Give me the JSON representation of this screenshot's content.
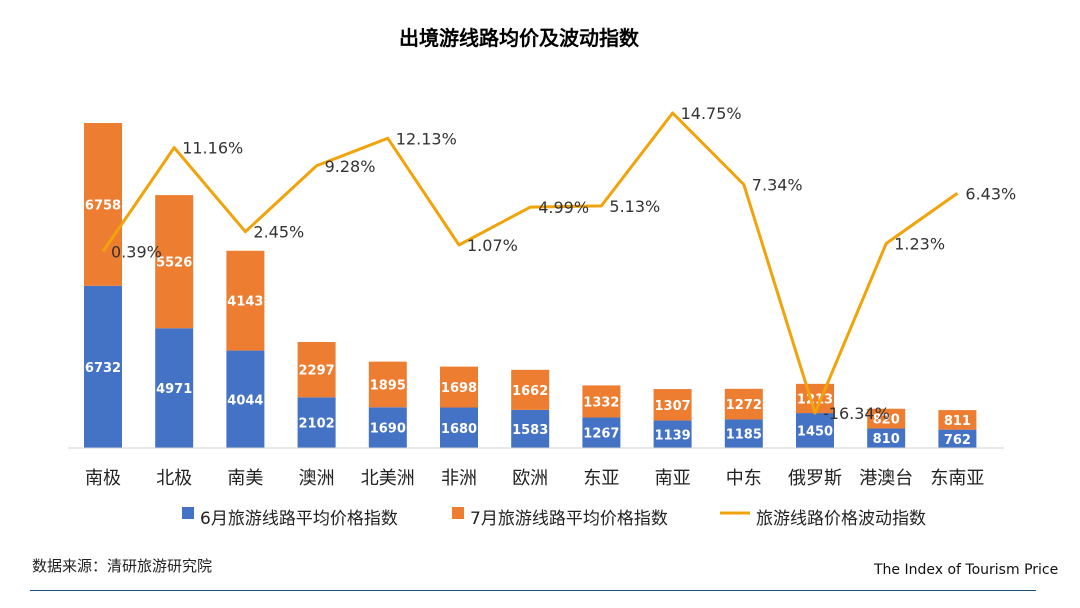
{
  "chart_data": {
    "type": "bar",
    "title": "出境游线路均价及波动指数",
    "categories": [
      "南极",
      "北极",
      "南美",
      "澳洲",
      "北美洲",
      "非洲",
      "欧洲",
      "东亚",
      "南亚",
      "中东",
      "俄罗斯",
      "港澳台",
      "东南亚"
    ],
    "series": [
      {
        "name": "6月旅游线路平均价格指数",
        "type": "bar",
        "stack": "price",
        "color": "#4472c4",
        "values": [
          6732,
          4971,
          4044,
          2102,
          1690,
          1680,
          1583,
          1267,
          1139,
          1185,
          1450,
          810,
          762
        ]
      },
      {
        "name": "7月旅游线路平均价格指数",
        "type": "bar",
        "stack": "price",
        "color": "#ed7d31",
        "values": [
          6758,
          5526,
          4143,
          2297,
          1895,
          1698,
          1662,
          1332,
          1307,
          1272,
          1213,
          820,
          811
        ]
      },
      {
        "name": "旅游线路价格波动指数",
        "type": "line",
        "color": "#f0a30a",
        "values": [
          0.39,
          11.16,
          2.45,
          9.28,
          12.13,
          1.07,
          4.99,
          5.13,
          14.75,
          7.34,
          -16.34,
          1.23,
          6.43
        ],
        "labels": [
          "0.39%",
          "11.16%",
          "2.45%",
          "9.28%",
          "12.13%",
          "1.07%",
          "4.99%",
          "5.13%",
          "14.75%",
          "7.34%",
          "-16.34%",
          "1.23%",
          "6.43%"
        ]
      }
    ],
    "legend_position": "bottom",
    "grid": false
  },
  "footer": {
    "source": "数据来源：清研旅游研究院",
    "brand": "The Index of Tourism Price"
  }
}
